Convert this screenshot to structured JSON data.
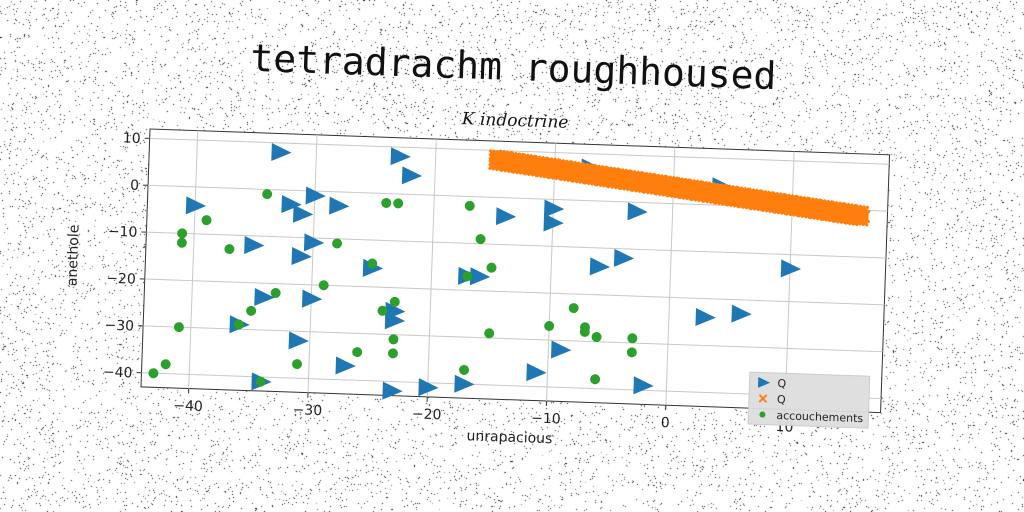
{
  "chart_data": {
    "type": "scatter",
    "title": "tetradrachm roughhoused",
    "subtitle": "K indoctrine",
    "xlabel": "unrapacious",
    "ylabel": "anethole",
    "xlim": [
      -44,
      18
    ],
    "ylim": [
      -43,
      12
    ],
    "xticks": [
      -40,
      -30,
      -20,
      -10,
      0,
      10
    ],
    "yticks": [
      10,
      0,
      -10,
      -20,
      -30,
      -40
    ],
    "grid": true,
    "legend_position": "lower-right",
    "series": [
      {
        "name": "Q",
        "marker": "triangle-right",
        "color": "#1f77b4",
        "points": [
          [
            -33,
            8
          ],
          [
            -23,
            8
          ],
          [
            -22,
            4
          ],
          [
            -7,
            7
          ],
          [
            4,
            4
          ],
          [
            -40,
            -4
          ],
          [
            -30,
            -1
          ],
          [
            -32,
            -3
          ],
          [
            -31,
            -5
          ],
          [
            -28,
            -3
          ],
          [
            -14,
            -4
          ],
          [
            -10,
            -2
          ],
          [
            -10,
            -5
          ],
          [
            -3,
            -2
          ],
          [
            -35,
            -12
          ],
          [
            -30,
            -11
          ],
          [
            -31,
            -14
          ],
          [
            -6,
            -14
          ],
          [
            -4,
            -12
          ],
          [
            10,
            -13
          ],
          [
            -25,
            -16
          ],
          [
            -17,
            -17
          ],
          [
            -16,
            -17
          ],
          [
            -34,
            -23
          ],
          [
            -30,
            -23
          ],
          [
            -23,
            -25
          ],
          [
            -23,
            -27
          ],
          [
            3,
            -24
          ],
          [
            6,
            -23
          ],
          [
            -36,
            -29
          ],
          [
            -31,
            -32
          ],
          [
            -9,
            -32
          ],
          [
            -27,
            -37
          ],
          [
            -11,
            -37
          ],
          [
            -2,
            -39
          ],
          [
            -34,
            -41
          ],
          [
            -23,
            -42
          ],
          [
            -20,
            -41
          ],
          [
            -17,
            -40
          ]
        ]
      },
      {
        "name": "Q",
        "marker": "x",
        "color": "#ff7f0e",
        "points": [
          [
            -15,
            8
          ],
          [
            -14,
            7.7
          ],
          [
            -13,
            7.4
          ],
          [
            -12,
            7.1
          ],
          [
            -11,
            6.8
          ],
          [
            -10,
            6.5
          ],
          [
            -9,
            6.2
          ],
          [
            -8,
            5.9
          ],
          [
            -7,
            5.6
          ],
          [
            -6,
            5.3
          ],
          [
            -5,
            5.0
          ],
          [
            -4,
            4.7
          ],
          [
            -3,
            4.4
          ],
          [
            -2,
            4.1
          ],
          [
            -1,
            3.8
          ],
          [
            0,
            3.5
          ],
          [
            1,
            3.2
          ],
          [
            2,
            2.9
          ],
          [
            3,
            2.6
          ],
          [
            4,
            2.3
          ],
          [
            5,
            2.0
          ],
          [
            6,
            1.7
          ],
          [
            7,
            1.4
          ],
          [
            8,
            1.1
          ],
          [
            9,
            0.8
          ],
          [
            10,
            0.5
          ],
          [
            11,
            0.2
          ],
          [
            12,
            -0.1
          ],
          [
            13,
            -0.4
          ],
          [
            14,
            -0.7
          ],
          [
            15,
            -1.0
          ],
          [
            16,
            -1.3
          ]
        ]
      },
      {
        "name": "accouchements",
        "marker": "circle",
        "color": "#2ca02c",
        "points": [
          [
            -34,
            -1
          ],
          [
            -39,
            -7
          ],
          [
            -41,
            -10
          ],
          [
            -41,
            -12
          ],
          [
            -37,
            -13
          ],
          [
            -24,
            -2
          ],
          [
            -23,
            -2
          ],
          [
            -17,
            -2
          ],
          [
            -16,
            -9
          ],
          [
            -28,
            -11
          ],
          [
            -15,
            -15
          ],
          [
            -17,
            -17
          ],
          [
            -25,
            -15
          ],
          [
            -29,
            -20
          ],
          [
            -33,
            -22
          ],
          [
            -35,
            -26
          ],
          [
            -23,
            -23
          ],
          [
            -24,
            -25
          ],
          [
            -15,
            -29
          ],
          [
            -10,
            -27
          ],
          [
            -8,
            -23
          ],
          [
            -7,
            -27
          ],
          [
            -7,
            -28
          ],
          [
            -6,
            -29
          ],
          [
            -3,
            -29
          ],
          [
            -3,
            -32
          ],
          [
            -41,
            -30
          ],
          [
            -36,
            -29
          ],
          [
            -23,
            -31
          ],
          [
            -23,
            -34
          ],
          [
            -26,
            -34
          ],
          [
            -31,
            -37
          ],
          [
            -17,
            -37
          ],
          [
            -6,
            -38
          ],
          [
            -42,
            -38
          ],
          [
            -43,
            -40
          ],
          [
            -34,
            -41
          ]
        ]
      }
    ]
  }
}
